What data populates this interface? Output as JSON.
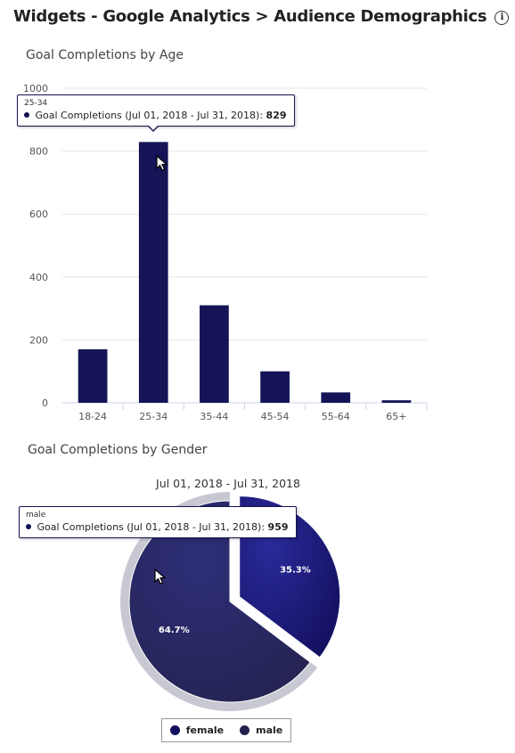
{
  "page": {
    "title": "Widgets - Google Analytics > Audience Demographics",
    "info_icon": "info-icon"
  },
  "colors": {
    "bar": "#141456",
    "female": "#130f5c",
    "male": "#23224d",
    "grid": "#e6e6e6"
  },
  "chart_data": [
    {
      "type": "bar",
      "title": "Goal Completions by Age",
      "categories": [
        "18-24",
        "25-34",
        "35-44",
        "45-54",
        "55-64",
        "65+"
      ],
      "values": [
        170,
        829,
        310,
        100,
        33,
        8
      ],
      "series": [
        {
          "name": "Goal Completions (Jul 01, 2018 - Jul 31, 2018)",
          "values": [
            170,
            829,
            310,
            100,
            33,
            8
          ]
        }
      ],
      "ylim": [
        0,
        1000
      ],
      "yticks": [
        "0",
        "200",
        "400",
        "600",
        "800",
        "1000"
      ],
      "grid": true,
      "tooltip": {
        "category": "25-34",
        "series": "Goal Completions (Jul 01, 2018 - Jul 31, 2018):",
        "value": "829"
      }
    },
    {
      "type": "pie",
      "title": "Goal Completions by Gender",
      "subtitle": "Jul 01, 2018 - Jul 31, 2018",
      "categories": [
        "female",
        "male"
      ],
      "values": [
        523,
        959
      ],
      "labels": [
        "35.3%",
        "64.7%"
      ],
      "legend_placement": "bottom-center",
      "tooltip": {
        "category": "male",
        "series": "Goal Completions (Jul 01, 2018 - Jul 31, 2018):",
        "value": "959"
      }
    }
  ]
}
